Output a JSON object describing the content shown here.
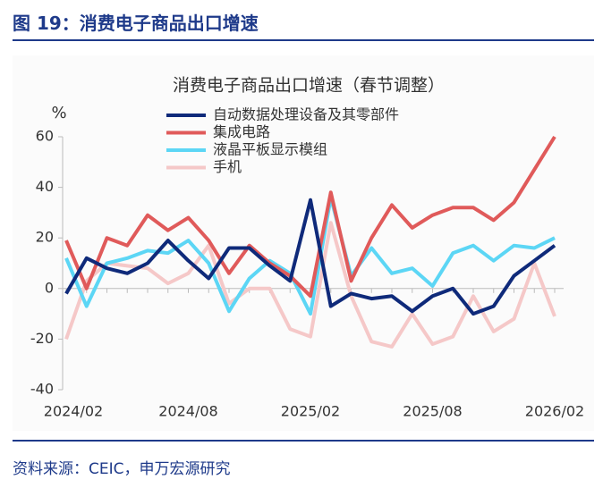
{
  "header": {
    "title": "图 19：消费电子商品出口增速"
  },
  "footer": {
    "source": "资料来源：CEIC，申万宏源研究"
  },
  "chart_data": {
    "type": "line",
    "title": "消费电子商品出口增速（春节调整）",
    "y_label": "%",
    "categories": [
      "2024/02",
      null,
      null,
      null,
      null,
      null,
      "2024/08",
      null,
      null,
      null,
      null,
      null,
      "2025/02",
      null,
      null,
      null,
      null,
      null,
      "2025/08",
      null,
      null,
      null,
      null,
      null,
      "2026/02"
    ],
    "series": [
      {
        "name": "自动数据处理设备及其零部件",
        "color": "#0f2a7a",
        "values": [
          -2,
          12,
          8,
          6,
          10,
          19,
          11,
          4,
          16,
          16,
          9,
          3,
          35,
          -7,
          -2,
          -4,
          -3,
          -9,
          -3,
          0,
          -10,
          -7,
          5,
          11,
          17
        ]
      },
      {
        "name": "集成电路",
        "color": "#e05a5a",
        "values": [
          19,
          0,
          20,
          17,
          29,
          23,
          28,
          19,
          6,
          17,
          10,
          5,
          -3,
          38,
          3,
          20,
          33,
          24,
          29,
          32,
          32,
          27,
          34,
          47,
          60
        ]
      },
      {
        "name": "液晶平板显示模组",
        "color": "#5cd6f5",
        "values": [
          12,
          -7,
          10,
          12,
          15,
          14,
          19,
          10,
          -9,
          4,
          11,
          6,
          -10,
          36,
          5,
          16,
          6,
          8,
          1,
          14,
          17,
          11,
          17,
          16,
          20
        ]
      },
      {
        "name": "手机",
        "color": "#f5c8c8",
        "values": [
          -20,
          3,
          10,
          9,
          8,
          2,
          6,
          17,
          -6,
          0,
          0,
          -16,
          -19,
          26,
          -3,
          -21,
          -23,
          -10,
          -22,
          -19,
          -3,
          -17,
          -12,
          10,
          -11
        ]
      }
    ],
    "ylim": [
      -40,
      60
    ],
    "yticks": [
      -40,
      -20,
      0,
      20,
      40,
      60
    ],
    "grid": false
  }
}
